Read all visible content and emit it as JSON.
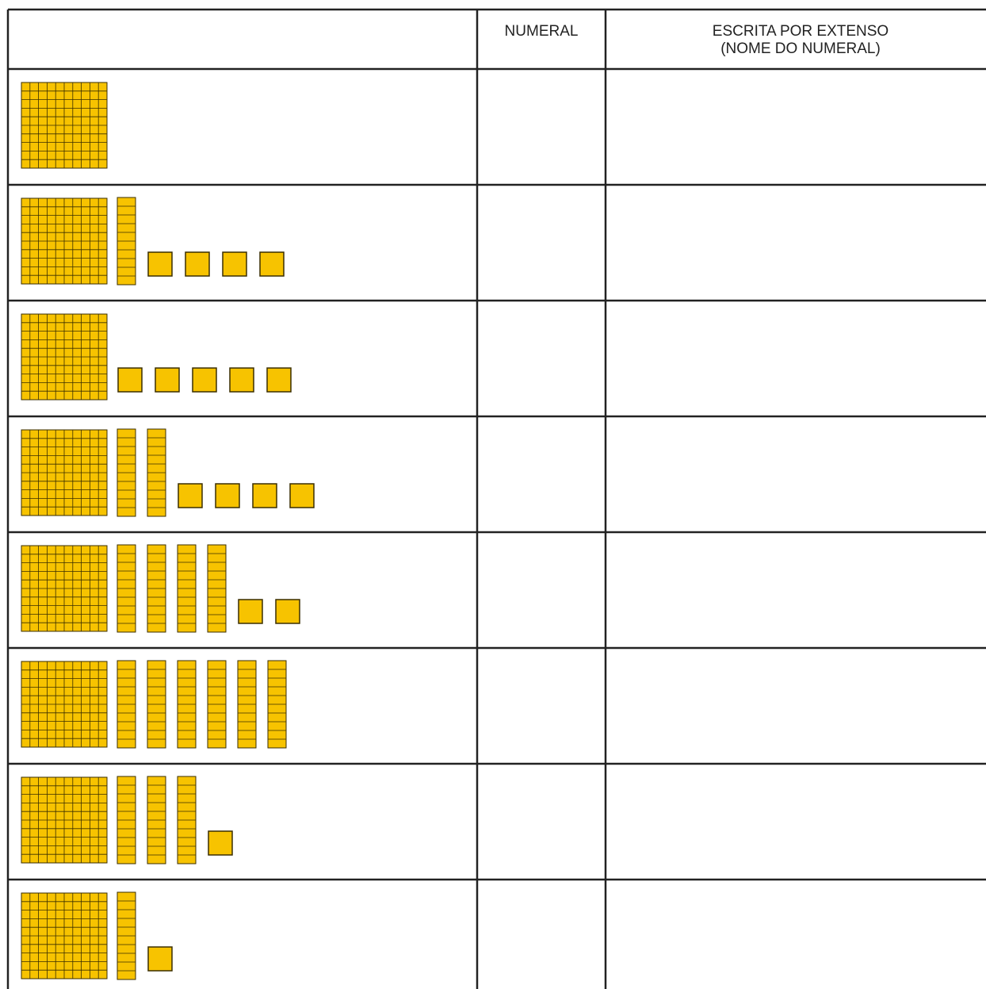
{
  "header": {
    "numeral": "NUMERAL",
    "extenso": [
      "ESCRITA POR EXTENSO",
      "(NOME DO NUMERAL)"
    ]
  },
  "rows": [
    {
      "hundreds": 1,
      "tens": 0,
      "units": 0
    },
    {
      "hundreds": 1,
      "tens": 1,
      "units": 4
    },
    {
      "hundreds": 1,
      "tens": 0,
      "units": 5
    },
    {
      "hundreds": 1,
      "tens": 2,
      "units": 4
    },
    {
      "hundreds": 1,
      "tens": 4,
      "units": 2
    },
    {
      "hundreds": 1,
      "tens": 6,
      "units": 0
    },
    {
      "hundreds": 1,
      "tens": 3,
      "units": 1
    },
    {
      "hundreds": 1,
      "tens": 1,
      "units": 1
    }
  ]
}
